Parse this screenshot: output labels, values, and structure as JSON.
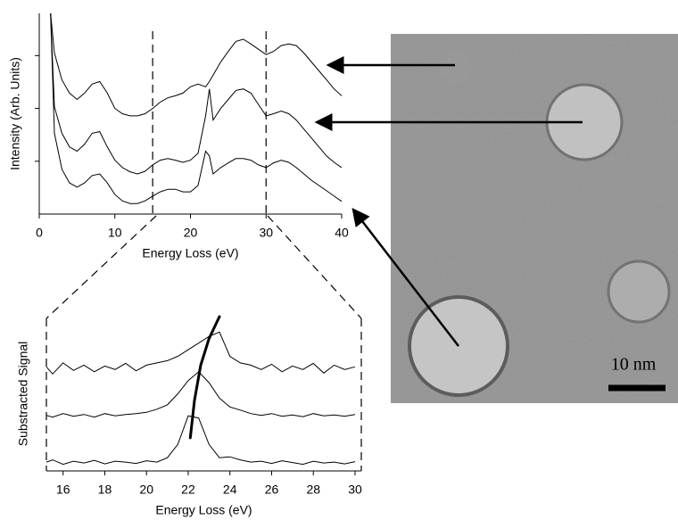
{
  "chart_data": [
    {
      "type": "line",
      "xlabel": "Energy Loss (eV)",
      "ylabel": "Intensity (Arb. Units)",
      "x": [
        1.5,
        2,
        3,
        4,
        5,
        6,
        7,
        8,
        9,
        10,
        11,
        12,
        13,
        14,
        15,
        16,
        17,
        18,
        19,
        20,
        21,
        22,
        22.5,
        23,
        24,
        25,
        26,
        27,
        28,
        29,
        30,
        31,
        32,
        33,
        34,
        35,
        36,
        37,
        38,
        39,
        40
      ],
      "series": [
        {
          "color": "#000000",
          "values": [
            3.8,
            3.05,
            2.54,
            2.29,
            2.17,
            2.29,
            2.46,
            2.51,
            2.29,
            2.0,
            1.9,
            1.86,
            1.86,
            1.9,
            2.0,
            2.12,
            2.2,
            2.24,
            2.29,
            2.41,
            2.46,
            2.41,
            2.51,
            2.63,
            2.88,
            3.08,
            3.27,
            3.31,
            3.22,
            3.12,
            3.02,
            3.08,
            3.19,
            3.22,
            3.19,
            3.05,
            2.88,
            2.71,
            2.54,
            2.37,
            2.24
          ]
        },
        {
          "color": "#000000",
          "values": [
            3.8,
            2.03,
            1.53,
            1.27,
            1.19,
            1.32,
            1.53,
            1.56,
            1.27,
            1.02,
            0.88,
            0.8,
            0.76,
            0.81,
            0.93,
            1.02,
            1.05,
            1.02,
            0.98,
            1.02,
            1.15,
            1.86,
            2.37,
            1.78,
            2.0,
            2.17,
            2.34,
            2.37,
            2.29,
            2.07,
            1.86,
            1.9,
            1.95,
            1.9,
            1.78,
            1.61,
            1.44,
            1.27,
            1.1,
            0.98,
            0.88
          ]
        },
        {
          "color": "#000000",
          "values": [
            3.8,
            1.53,
            0.85,
            0.59,
            0.51,
            0.59,
            0.73,
            0.76,
            0.59,
            0.37,
            0.25,
            0.2,
            0.2,
            0.25,
            0.34,
            0.42,
            0.47,
            0.47,
            0.42,
            0.42,
            0.54,
            1.19,
            1.1,
            0.76,
            0.88,
            0.97,
            1.05,
            1.05,
            1.02,
            0.93,
            0.88,
            0.97,
            1.02,
            0.98,
            0.88,
            0.76,
            0.64,
            0.54,
            0.44,
            0.34,
            0.24
          ]
        }
      ],
      "xlim": [
        0,
        40
      ],
      "xticks": [
        0,
        10,
        20,
        30,
        40
      ],
      "ylim": [
        0,
        3.8
      ],
      "yticks": [
        1,
        2,
        3
      ],
      "vlines": [
        15,
        30
      ]
    },
    {
      "type": "line",
      "xlabel": "Energy Loss (eV)",
      "ylabel": "Substracted Signal",
      "x": [
        15.2,
        15.5,
        16,
        16.5,
        17,
        17.5,
        18,
        18.5,
        19,
        19.5,
        20,
        20.5,
        21,
        21.5,
        22,
        22.5,
        23,
        23.5,
        24,
        24.5,
        25,
        25.5,
        26,
        26.5,
        27,
        27.5,
        28,
        28.5,
        29,
        29.5,
        30
      ],
      "series": [
        {
          "color": "#000000",
          "values": [
            2.36,
            2.2,
            2.45,
            2.28,
            2.4,
            2.25,
            2.38,
            2.3,
            2.44,
            2.27,
            2.4,
            2.45,
            2.5,
            2.6,
            2.75,
            2.9,
            3.05,
            3.15,
            2.6,
            2.45,
            2.4,
            2.3,
            2.42,
            2.25,
            2.38,
            2.3,
            2.44,
            2.22,
            2.4,
            2.3,
            2.36
          ]
        },
        {
          "color": "#000000",
          "values": [
            1.26,
            1.22,
            1.3,
            1.24,
            1.28,
            1.22,
            1.3,
            1.25,
            1.28,
            1.3,
            1.33,
            1.4,
            1.5,
            1.75,
            2.05,
            2.25,
            2.0,
            1.65,
            1.45,
            1.38,
            1.3,
            1.26,
            1.3,
            1.24,
            1.27,
            1.23,
            1.3,
            1.25,
            1.27,
            1.24,
            1.28
          ]
        },
        {
          "color": "#000000",
          "values": [
            0.2,
            0.25,
            0.15,
            0.22,
            0.18,
            0.24,
            0.16,
            0.22,
            0.2,
            0.17,
            0.23,
            0.2,
            0.3,
            0.6,
            1.25,
            1.2,
            0.6,
            0.3,
            0.32,
            0.25,
            0.2,
            0.22,
            0.17,
            0.23,
            0.19,
            0.15,
            0.22,
            0.18,
            0.2,
            0.16,
            0.21
          ]
        }
      ],
      "trend": {
        "x": [
          22.1,
          22.3,
          22.6,
          23,
          23.5
        ],
        "y": [
          0.75,
          1.6,
          2.4,
          3.0,
          3.5
        ]
      },
      "xlim": [
        15.2,
        30.3
      ],
      "xticks": [
        16,
        18,
        20,
        22,
        24,
        26,
        28,
        30
      ],
      "ylim": [
        0,
        3.5
      ]
    }
  ],
  "image": {
    "scale_bar": "10 nm"
  }
}
